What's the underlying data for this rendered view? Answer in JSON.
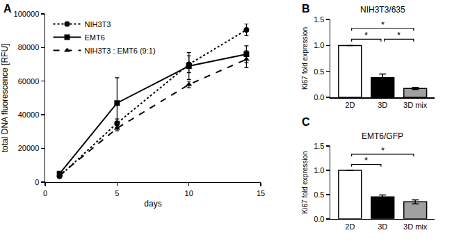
{
  "chart_data": [
    {
      "panel": "A",
      "type": "line",
      "x_label": "days",
      "y_label": "total DNA fluorescence [RFU]",
      "x": [
        1,
        5,
        10,
        14
      ],
      "series": [
        {
          "name": "NIH3T3",
          "color": "#000000",
          "marker": "circle",
          "line_style": "dotted",
          "values": [
            3500,
            35000,
            70000,
            90500
          ],
          "errors": [
            1000,
            2500,
            5000,
            3500
          ]
        },
        {
          "name": "EMT6",
          "color": "#000000",
          "marker": "square",
          "line_style": "solid",
          "values": [
            5000,
            47000,
            69000,
            76000
          ],
          "errors": [
            500,
            15000,
            8000,
            5000
          ]
        },
        {
          "name": "NIH3T3 : EMT6 (9:1)",
          "color": "#000000",
          "marker": "triangle",
          "line_style": "dashed",
          "values": [
            4000,
            32000,
            58000,
            73000
          ],
          "errors": [
            500,
            1500,
            2000,
            5000
          ]
        }
      ],
      "xlim": [
        0,
        15
      ],
      "xticks": [
        0,
        5,
        10,
        15
      ],
      "ylim": [
        0,
        100000
      ],
      "yticks": [
        0,
        20000,
        40000,
        60000,
        80000,
        100000
      ],
      "legend": "upper left",
      "grid": false
    },
    {
      "panel": "B",
      "type": "bar",
      "title": "NIH3T3/635",
      "y_label": "Ki67 fold expression",
      "categories": [
        "2D",
        "3D",
        "3D mix"
      ],
      "values": [
        1.0,
        0.38,
        0.17
      ],
      "errors": [
        0,
        0.07,
        0.02
      ],
      "colors": [
        "#ffffff",
        "#000000",
        "#a0a0a0"
      ],
      "ylim": [
        0,
        1.5
      ],
      "yticks": [
        {
          "value": 0,
          "label": "0.0"
        },
        {
          "value": 0.5,
          "label": "0.5"
        },
        {
          "value": 1.0,
          "label": "1.0"
        },
        {
          "value": 1.5,
          "label": "1.5"
        }
      ],
      "significance": [
        {
          "from": "2D",
          "to": "3D",
          "label": "*"
        },
        {
          "from": "2D",
          "to": "3D mix",
          "label": "*"
        },
        {
          "from": "3D",
          "to": "3D mix",
          "label": "*"
        }
      ],
      "grid": false
    },
    {
      "panel": "C",
      "type": "bar",
      "title": "EMT6/GFP",
      "y_label": "Ki67 fold expression",
      "categories": [
        "2D",
        "3D",
        "3D mix"
      ],
      "values": [
        1.0,
        0.45,
        0.35
      ],
      "errors": [
        0,
        0.04,
        0.04
      ],
      "colors": [
        "#ffffff",
        "#000000",
        "#a0a0a0"
      ],
      "ylim": [
        0,
        1.5
      ],
      "yticks": [
        {
          "value": 0,
          "label": "0.0"
        },
        {
          "value": 0.5,
          "label": "0.5"
        },
        {
          "value": 1.0,
          "label": "1.0"
        },
        {
          "value": 1.5,
          "label": "1.5"
        }
      ],
      "significance": [
        {
          "from": "2D",
          "to": "3D",
          "label": "*"
        },
        {
          "from": "2D",
          "to": "3D mix",
          "label": "*"
        }
      ],
      "grid": false
    }
  ]
}
